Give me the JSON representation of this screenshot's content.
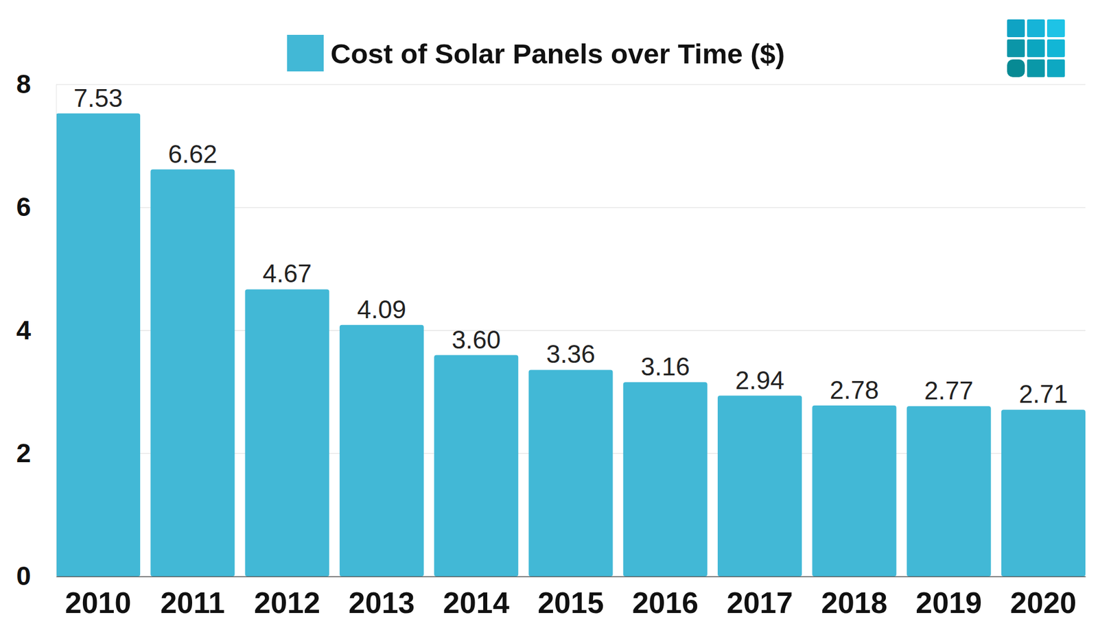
{
  "chart_data": {
    "type": "bar",
    "categories": [
      "2010",
      "2011",
      "2012",
      "2013",
      "2014",
      "2015",
      "2016",
      "2017",
      "2018",
      "2019",
      "2020"
    ],
    "series": [
      {
        "name": "Cost of Solar Panels over Time ($)",
        "color": "#42b8d6",
        "values": [
          7.53,
          6.62,
          4.67,
          4.09,
          3.6,
          3.36,
          3.16,
          2.94,
          2.78,
          2.77,
          2.71
        ],
        "value_labels": [
          "7.53",
          "6.62",
          "4.67",
          "4.09",
          "3.60",
          "3.36",
          "3.16",
          "2.94",
          "2.78",
          "2.77",
          "2.71"
        ]
      }
    ],
    "ylim": [
      0,
      8
    ],
    "yticks": [
      0,
      2,
      4,
      6,
      8
    ],
    "grid": true,
    "legend": "top",
    "data_labels": true
  }
}
